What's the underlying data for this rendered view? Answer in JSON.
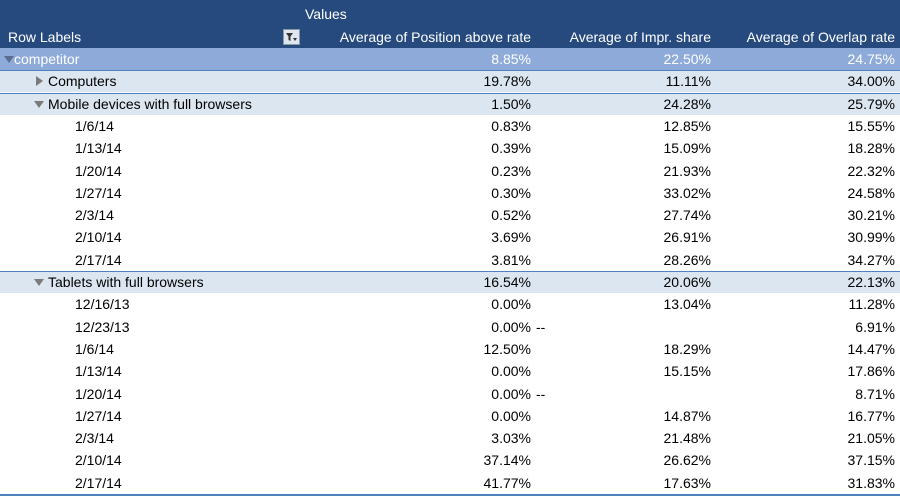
{
  "table": {
    "values_label": "Values",
    "row_labels": "Row Labels",
    "columns": [
      "Average of Position above rate",
      "Average of Impr. share",
      "Average of Overlap rate"
    ],
    "rows": [
      {
        "label": "competitor",
        "values": [
          "8.85%",
          "22.50%",
          "24.75%"
        ],
        "children": [
          {
            "label": "Computers",
            "values": [
              "19.78%",
              "11.11%",
              "34.00%"
            ]
          },
          {
            "label": "Mobile devices with full browsers",
            "values": [
              "1.50%",
              "24.28%",
              "25.79%"
            ],
            "children": [
              {
                "label": "1/6/14",
                "values": [
                  "0.83%",
                  "12.85%",
                  "15.55%"
                ]
              },
              {
                "label": "1/13/14",
                "values": [
                  "0.39%",
                  "15.09%",
                  "18.28%"
                ]
              },
              {
                "label": "1/20/14",
                "values": [
                  "0.23%",
                  "21.93%",
                  "22.32%"
                ]
              },
              {
                "label": "1/27/14",
                "values": [
                  "0.30%",
                  "33.02%",
                  "24.58%"
                ]
              },
              {
                "label": "2/3/14",
                "values": [
                  "0.52%",
                  "27.74%",
                  "30.21%"
                ]
              },
              {
                "label": "2/10/14",
                "values": [
                  "3.69%",
                  "26.91%",
                  "30.99%"
                ]
              },
              {
                "label": "2/17/14",
                "values": [
                  "3.81%",
                  "28.26%",
                  "34.27%"
                ]
              }
            ]
          },
          {
            "label": "Tablets with full browsers",
            "values": [
              "16.54%",
              "20.06%",
              "22.13%"
            ],
            "children": [
              {
                "label": "12/16/13",
                "values": [
                  "0.00%",
                  "13.04%",
                  "11.28%"
                ]
              },
              {
                "label": "12/23/13",
                "values": [
                  "0.00%",
                  "--",
                  "6.91%"
                ]
              },
              {
                "label": "1/6/14",
                "values": [
                  "12.50%",
                  "18.29%",
                  "14.47%"
                ]
              },
              {
                "label": "1/13/14",
                "values": [
                  "0.00%",
                  "15.15%",
                  "17.86%"
                ]
              },
              {
                "label": "1/20/14",
                "values": [
                  "0.00%",
                  "--",
                  "8.71%"
                ]
              },
              {
                "label": "1/27/14",
                "values": [
                  "0.00%",
                  "14.87%",
                  "16.77%"
                ]
              },
              {
                "label": "2/3/14",
                "values": [
                  "3.03%",
                  "21.48%",
                  "21.05%"
                ]
              },
              {
                "label": "2/10/14",
                "values": [
                  "37.14%",
                  "26.62%",
                  "37.15%"
                ]
              },
              {
                "label": "2/17/14",
                "values": [
                  "41.77%",
                  "17.63%",
                  "31.83%"
                ]
              }
            ]
          }
        ]
      }
    ]
  }
}
